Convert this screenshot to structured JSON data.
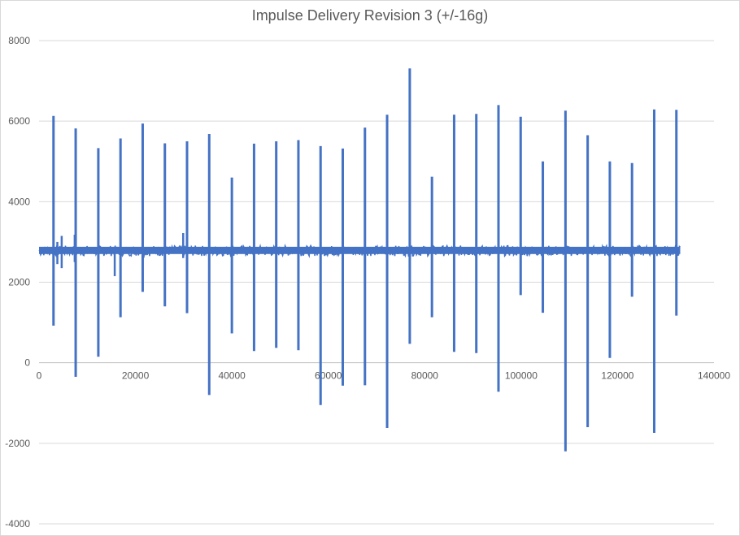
{
  "chart_data": {
    "type": "line",
    "title": "Impulse Delivery Revision 3 (+/-16g)",
    "xlabel": "",
    "ylabel": "",
    "xlim": [
      0,
      140000
    ],
    "ylim": [
      -4000,
      8000
    ],
    "x_ticks": [
      0,
      20000,
      40000,
      60000,
      80000,
      100000,
      120000,
      140000
    ],
    "y_ticks": [
      -4000,
      -2000,
      0,
      2000,
      4000,
      6000,
      8000
    ],
    "grid": "horizontal",
    "legend": "none",
    "line_color": "#4472C4",
    "baseline": 2780,
    "baseline_noise": [
      2700,
      2880
    ],
    "spikes": [
      {
        "x": 3000,
        "max": 6130,
        "min": 920
      },
      {
        "x": 7600,
        "max": 5820,
        "min": -350
      },
      {
        "x": 12300,
        "max": 5330,
        "min": 150
      },
      {
        "x": 16900,
        "max": 5570,
        "min": 1130
      },
      {
        "x": 21500,
        "max": 5940,
        "min": 1760
      },
      {
        "x": 26100,
        "max": 5450,
        "min": 1400
      },
      {
        "x": 30700,
        "max": 5500,
        "min": 1230
      },
      {
        "x": 35300,
        "max": 5680,
        "min": -800
      },
      {
        "x": 40000,
        "max": 4600,
        "min": 730
      },
      {
        "x": 44600,
        "max": 5440,
        "min": 290
      },
      {
        "x": 49200,
        "max": 5500,
        "min": 370
      },
      {
        "x": 53800,
        "max": 5530,
        "min": 310
      },
      {
        "x": 58400,
        "max": 5380,
        "min": -1050
      },
      {
        "x": 63000,
        "max": 5320,
        "min": -570
      },
      {
        "x": 67600,
        "max": 5840,
        "min": -560
      },
      {
        "x": 72200,
        "max": 6160,
        "min": -1620
      },
      {
        "x": 76900,
        "max": 7310,
        "min": 470
      },
      {
        "x": 81500,
        "max": 4620,
        "min": 1130
      },
      {
        "x": 86100,
        "max": 6160,
        "min": 270
      },
      {
        "x": 90700,
        "max": 6180,
        "min": 240
      },
      {
        "x": 95300,
        "max": 6400,
        "min": -720
      },
      {
        "x": 99900,
        "max": 6110,
        "min": 1680
      },
      {
        "x": 104500,
        "max": 5000,
        "min": 1240
      },
      {
        "x": 109200,
        "max": 6260,
        "min": -2200
      },
      {
        "x": 113800,
        "max": 5650,
        "min": -1600
      },
      {
        "x": 118400,
        "max": 5000,
        "min": 120
      },
      {
        "x": 123000,
        "max": 4960,
        "min": 1640
      },
      {
        "x": 127600,
        "max": 6290,
        "min": -1740
      },
      {
        "x": 132200,
        "max": 6280,
        "min": 1170
      }
    ],
    "minor_spikes": [
      {
        "x": 3800,
        "max": 3000,
        "min": 2450
      },
      {
        "x": 4700,
        "max": 3150,
        "min": 2350
      },
      {
        "x": 7400,
        "max": 3180,
        "min": 2500
      },
      {
        "x": 15700,
        "max": 2880,
        "min": 2150
      },
      {
        "x": 29900,
        "max": 3220,
        "min": 2600
      }
    ]
  }
}
